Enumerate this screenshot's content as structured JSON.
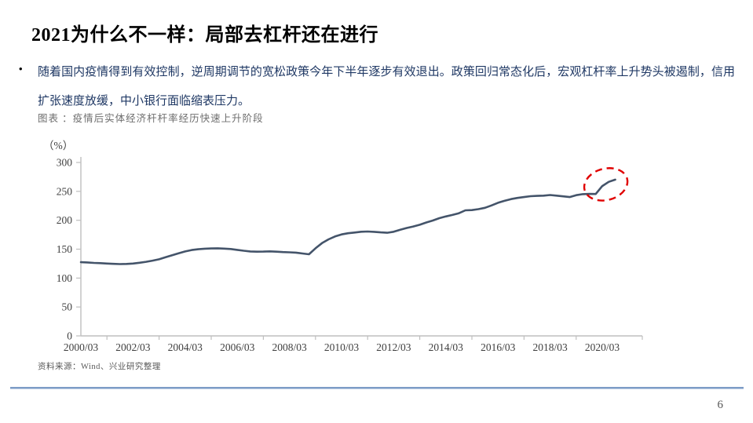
{
  "slide": {
    "title": "2021为什么不一样：局部去杠杆还在进行",
    "bullet_marker": "•",
    "bullet": "随着国内疫情得到有效控制，逆周期调节的宽松政策今年下半年逐步有效退出。政策回归常态化后，宏观杠杆率上升势头被遏制，信用扩张速度放缓，中小银行面临缩表压力。",
    "figure_caption": "图表 ：疫情后实体经济杆杆率经历快速上升阶段",
    "source": "资料来源：Wind、兴业研究整理",
    "page_number": "6"
  },
  "chart_data": {
    "type": "line",
    "title": "疫情后实体经济杆杆率经历快速上升阶段",
    "unit_label": "（%）",
    "ylim": [
      0,
      300
    ],
    "y_ticks": [
      0,
      50,
      100,
      150,
      200,
      250,
      300
    ],
    "x_tick_labels": [
      "2000/03",
      "2002/03",
      "2004/03",
      "2006/03",
      "2008/03",
      "2010/03",
      "2012/03",
      "2014/03",
      "2016/03",
      "2018/03",
      "2020/03"
    ],
    "x_label_every_n_points": 8,
    "frequency": "quarterly",
    "x_start": "2000/03",
    "x_end": "2020/09",
    "grid": false,
    "legend": "none",
    "series": [
      {
        "name": "实体经济杠杆率",
        "color": "#44546A",
        "values": [
          127.5,
          127.0,
          126.3,
          125.8,
          125.2,
          124.6,
          124.2,
          124.5,
          125.2,
          126.5,
          128.2,
          130.2,
          132.5,
          136.0,
          139.5,
          143.0,
          146.0,
          148.5,
          149.8,
          150.8,
          151.2,
          151.5,
          151.0,
          150.3,
          148.8,
          147.3,
          146.0,
          145.6,
          145.8,
          146.2,
          145.6,
          145.0,
          144.6,
          144.0,
          142.6,
          141.2,
          151.5,
          160.5,
          167.0,
          172.0,
          175.5,
          177.5,
          178.8,
          180.2,
          180.6,
          180.0,
          179.0,
          178.4,
          180.2,
          183.5,
          186.6,
          189.2,
          192.2,
          196.2,
          199.6,
          203.6,
          206.6,
          209.2,
          212.2,
          217.2,
          217.6,
          219.2,
          221.6,
          225.6,
          230.2,
          233.6,
          236.6,
          238.6,
          240.2,
          241.6,
          242.2,
          242.6,
          243.6,
          242.6,
          241.4,
          240.2,
          243.4,
          245.2,
          245.6,
          245.4,
          259.2,
          266.5,
          270.3
        ]
      }
    ],
    "annotation": {
      "shape": "dashed-ellipse",
      "color": "#E00000",
      "highlights": "2020年快速上升阶段"
    }
  }
}
